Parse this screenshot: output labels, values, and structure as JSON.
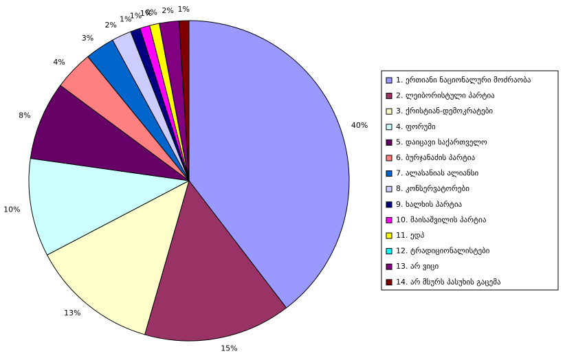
{
  "chart_data": {
    "type": "pie",
    "categories": [
      "1. ერთიანი ნაციონალური მოძრაობა",
      "2. ლეიბორისტული პარტია",
      "3. ქრისტიან-დემოკრატები",
      "4. ფორუმი",
      "5. დაიცავი საქართველო",
      "6. ბურჯანაძის პარტია",
      "7. ალასანიას ალიანსი",
      "8. კონსერვატორები",
      "9. ხალხის პარტია",
      "10. მაისაშვილის პარტია",
      "11. ედპ",
      "12. ტრადიციონალისტები",
      "13. არ ვიცი",
      "14. არ მსურს პასუხის გაცემა"
    ],
    "values": [
      40,
      15,
      13,
      10,
      8,
      4,
      3,
      2,
      1,
      1,
      1,
      0,
      2,
      1
    ],
    "value_labels": [
      "40%",
      "15%",
      "13%",
      "10%",
      "8%",
      "4%",
      "3%",
      "2%",
      "1%",
      "1%",
      "1%",
      "0%",
      "2%",
      "1%"
    ],
    "colors": [
      "#9999ff",
      "#993366",
      "#ffffcc",
      "#ccffff",
      "#660066",
      "#ff8080",
      "#0066cc",
      "#ccccff",
      "#000080",
      "#ff00ff",
      "#ffff00",
      "#00ffff",
      "#800080",
      "#800000"
    ],
    "legend": "right"
  }
}
